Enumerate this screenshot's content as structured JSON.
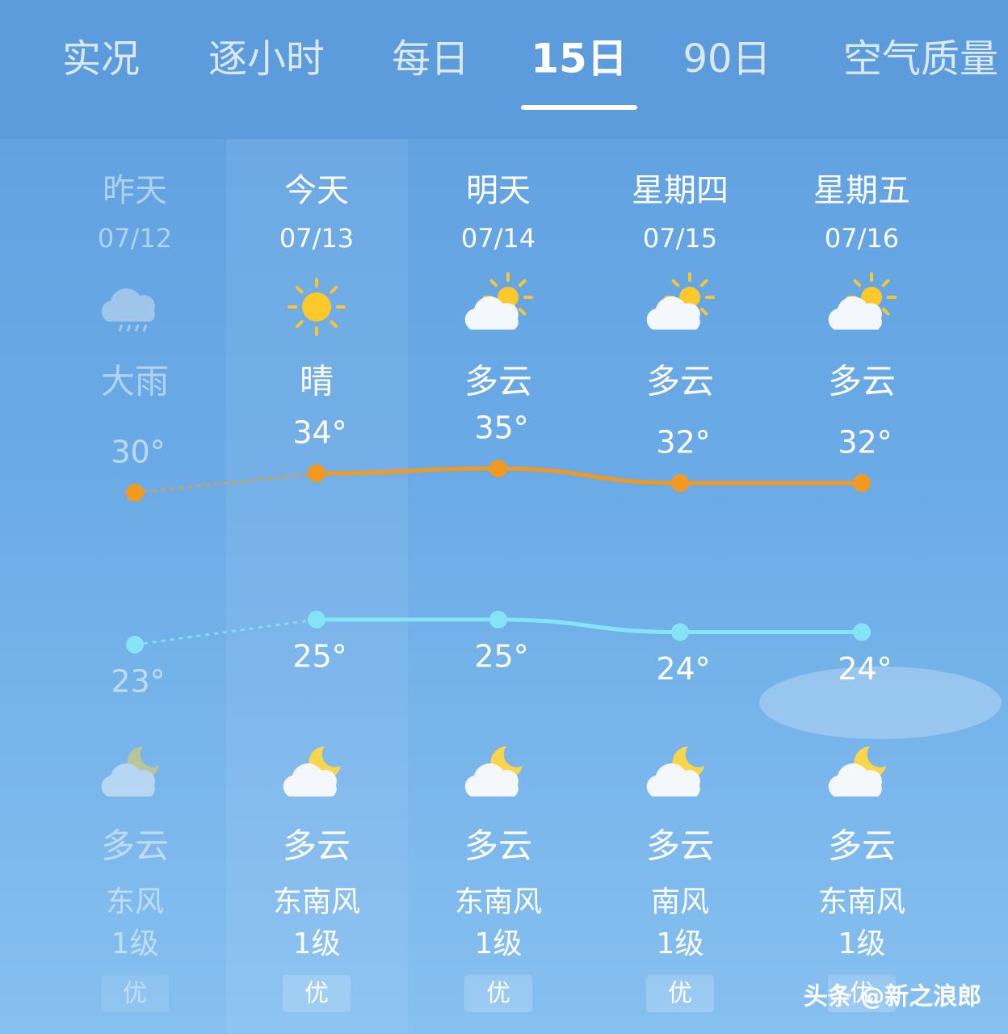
{
  "tabs": [
    "实况",
    "逐小时",
    "每日",
    "15日",
    "90日",
    "空气质量"
  ],
  "active_tab": 3,
  "days": [
    {
      "name": "昨天",
      "date": "07/12",
      "day_weather": "大雨",
      "night_weather": "多云",
      "wind": "东风",
      "wind_level": "1级",
      "aqi": "优"
    },
    {
      "name": "今天",
      "date": "07/13",
      "day_weather": "晴",
      "night_weather": "多云",
      "wind": "东南风",
      "wind_level": "1级",
      "aqi": "优"
    },
    {
      "name": "明天",
      "date": "07/14",
      "day_weather": "多云",
      "night_weather": "多云",
      "wind": "东南风",
      "wind_level": "1级",
      "aqi": "优"
    },
    {
      "name": "星期四",
      "date": "07/15",
      "day_weather": "多云",
      "night_weather": "多云",
      "wind": "南风",
      "wind_level": "1级",
      "aqi": "优"
    },
    {
      "name": "星期五",
      "date": "07/16",
      "day_weather": "多云",
      "night_weather": "多云",
      "wind": "东南风",
      "wind_level": "1级",
      "aqi": "优"
    }
  ],
  "temperature_chart": {
    "highs": [
      30,
      34,
      35,
      32,
      32
    ],
    "high_labels": [
      "30°",
      "34°",
      "35°",
      "32°",
      "32°"
    ],
    "high_color": "#f39a1e",
    "lows": [
      23,
      25,
      25,
      24,
      24
    ],
    "low_labels": [
      "23°",
      "25°",
      "25°",
      "24°",
      "24°"
    ],
    "low_color": "#86e4f7"
  },
  "watermark": "头条 @新之浪郎"
}
